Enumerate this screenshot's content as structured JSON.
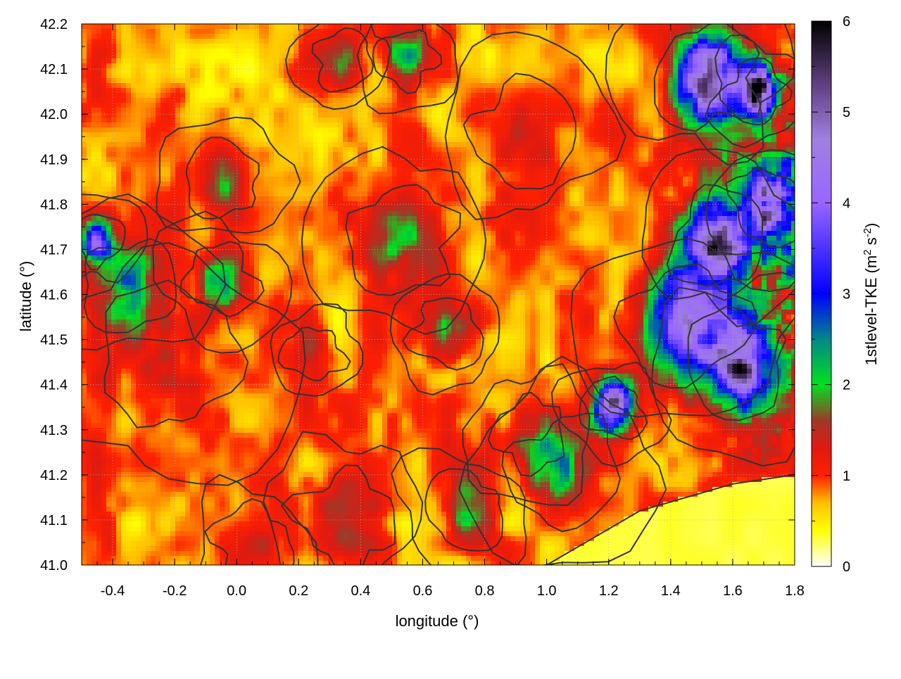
{
  "chart_data": {
    "type": "heatmap",
    "title": "",
    "xlabel": "longitude (°)",
    "ylabel": "latitude (°)",
    "colorbar_label": "1stlevel-TKE (m² s⁻²)",
    "colorbar_label_parts": {
      "base": "1stlevel-TKE (m",
      "sup1": "2",
      "mid": " s",
      "sup2": "-2",
      "end": ")"
    },
    "xlim": [
      -0.5,
      1.8
    ],
    "ylim": [
      41.0,
      42.2
    ],
    "zlim": [
      0,
      6
    ],
    "x_ticks": [
      "-0.4",
      "-0.2",
      "0.0",
      "0.2",
      "0.4",
      "0.6",
      "0.8",
      "1.0",
      "1.2",
      "1.4",
      "1.6",
      "1.8"
    ],
    "x_tick_values": [
      -0.4,
      -0.2,
      0.0,
      0.2,
      0.4,
      0.6,
      0.8,
      1.0,
      1.2,
      1.4,
      1.6,
      1.8
    ],
    "y_ticks": [
      "41.0",
      "41.1",
      "41.2",
      "41.3",
      "41.4",
      "41.5",
      "41.6",
      "41.7",
      "41.8",
      "41.9",
      "42.0",
      "42.1",
      "42.2"
    ],
    "y_tick_values": [
      41.0,
      41.1,
      41.2,
      41.3,
      41.4,
      41.5,
      41.6,
      41.7,
      41.8,
      41.9,
      42.0,
      42.1,
      42.2
    ],
    "colorbar_ticks": [
      "0",
      "1",
      "2",
      "3",
      "4",
      "5",
      "6"
    ],
    "colorbar_tick_values": [
      0,
      1,
      2,
      3,
      4,
      5,
      6
    ],
    "colormap": [
      {
        "v": 0.0,
        "color": "#ffffff"
      },
      {
        "v": 0.4,
        "color": "#ffff00"
      },
      {
        "v": 0.7,
        "color": "#ffc000"
      },
      {
        "v": 1.0,
        "color": "#ff2000"
      },
      {
        "v": 1.3,
        "color": "#e01a10"
      },
      {
        "v": 1.6,
        "color": "#a03828"
      },
      {
        "v": 2.0,
        "color": "#00e020"
      },
      {
        "v": 2.5,
        "color": "#008888"
      },
      {
        "v": 3.0,
        "color": "#0000ff"
      },
      {
        "v": 4.0,
        "color": "#9966ff"
      },
      {
        "v": 4.7,
        "color": "#a080e0"
      },
      {
        "v": 5.3,
        "color": "#604080"
      },
      {
        "v": 6.0,
        "color": "#000000"
      }
    ],
    "grid": true,
    "contours": true,
    "hotspots": [
      {
        "lon": -0.22,
        "lat": 41.45,
        "r": 0.14,
        "v": 1.6
      },
      {
        "lon": -0.35,
        "lat": 41.62,
        "r": 0.09,
        "v": 2.2
      },
      {
        "lon": -0.45,
        "lat": 41.72,
        "r": 0.05,
        "v": 4.2
      },
      {
        "lon": -0.05,
        "lat": 41.85,
        "r": 0.07,
        "v": 1.7
      },
      {
        "lon": -0.05,
        "lat": 41.63,
        "r": 0.07,
        "v": 2.4
      },
      {
        "lon": 0.54,
        "lat": 41.72,
        "r": 0.1,
        "v": 2.0
      },
      {
        "lon": 0.68,
        "lat": 41.52,
        "r": 0.07,
        "v": 2.0
      },
      {
        "lon": 0.25,
        "lat": 41.47,
        "r": 0.06,
        "v": 1.3
      },
      {
        "lon": 0.35,
        "lat": 41.1,
        "r": 0.1,
        "v": 1.6
      },
      {
        "lon": 0.05,
        "lat": 41.05,
        "r": 0.08,
        "v": 1.2
      },
      {
        "lon": 1.05,
        "lat": 41.22,
        "r": 0.1,
        "v": 2.3
      },
      {
        "lon": 1.22,
        "lat": 41.35,
        "r": 0.06,
        "v": 5.2
      },
      {
        "lon": 1.45,
        "lat": 41.55,
        "r": 0.12,
        "v": 4.0
      },
      {
        "lon": 1.62,
        "lat": 41.45,
        "r": 0.1,
        "v": 4.6
      },
      {
        "lon": 1.55,
        "lat": 41.72,
        "r": 0.09,
        "v": 4.4
      },
      {
        "lon": 1.52,
        "lat": 42.08,
        "r": 0.1,
        "v": 4.8
      },
      {
        "lon": 1.68,
        "lat": 42.05,
        "r": 0.06,
        "v": 5.4
      },
      {
        "lon": 1.72,
        "lat": 41.8,
        "r": 0.08,
        "v": 4.0
      },
      {
        "lon": 0.55,
        "lat": 42.13,
        "r": 0.06,
        "v": 2.6
      },
      {
        "lon": 0.35,
        "lat": 42.12,
        "r": 0.06,
        "v": 1.8
      },
      {
        "lon": 0.9,
        "lat": 41.95,
        "r": 0.1,
        "v": 1.2
      },
      {
        "lon": 0.75,
        "lat": 41.12,
        "r": 0.08,
        "v": 1.8
      },
      {
        "lon": 0.95,
        "lat": 41.3,
        "r": 0.08,
        "v": 1.6
      }
    ],
    "low_region_southeast": {
      "value": 0.3,
      "boundary": [
        [
          1.0,
          41.0
        ],
        [
          1.3,
          41.12
        ],
        [
          1.6,
          41.18
        ],
        [
          1.8,
          41.2
        ]
      ]
    }
  }
}
